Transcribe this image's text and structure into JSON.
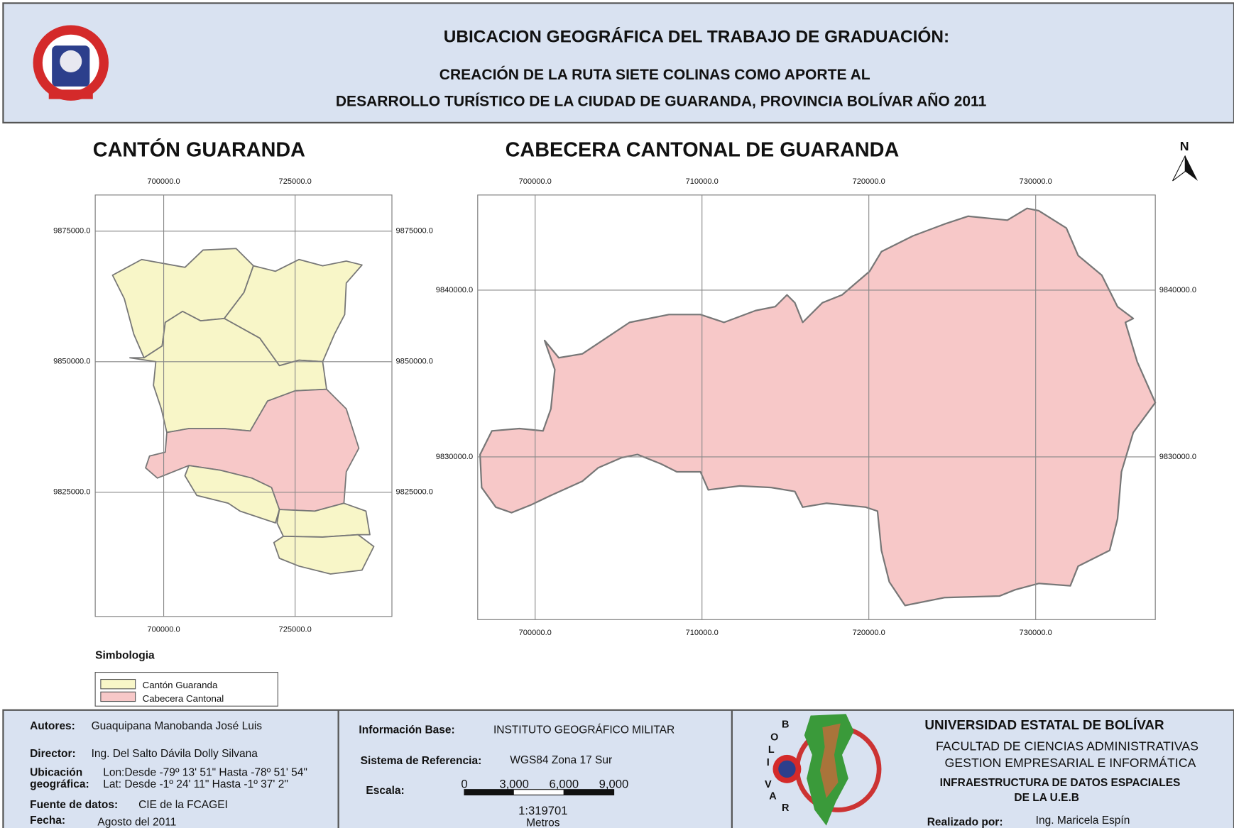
{
  "header": {
    "title": "UBICACION GEOGRÁFICA DEL TRABAJO DE GRADUACIÓN:",
    "subtitle_lines": [
      "CREACIÓN  DE LA RUTA  SIETE COLINAS COMO APORTE AL",
      "DESARROLLO TURÍSTICO DE LA CIUDAD DE GUARANDA, PROVINCIA BOLÍVAR AÑO 2011"
    ]
  },
  "maps": [
    {
      "title": "CANTÓN GUARANDA",
      "x_labels": [
        "700000.0",
        "725000.0"
      ],
      "y_labels": [
        "9875000.0",
        "9850000.0",
        "9825000.0"
      ]
    },
    {
      "title": "CABECERA CANTONAL DE GUARANDA",
      "x_labels": [
        "700000.0",
        "710000.0",
        "720000.0",
        "730000.0"
      ],
      "y_labels": [
        "9840000.0",
        "9830000.0"
      ]
    }
  ],
  "north": "N",
  "legend": {
    "title": "Simbologia",
    "items": [
      "Cantón Guaranda",
      "Cabecera Cantonal"
    ]
  },
  "footer": {
    "authors": {
      "label": "Autores:",
      "value": "Guaquipana Manobanda José Luis"
    },
    "director": {
      "label": "Director:",
      "value": "Ing. Del Salto Dávila Dolly Silvana"
    },
    "location": {
      "label_lines": [
        "Ubicación",
        "geográfica:"
      ],
      "value_lines": [
        "Lon:Desde -79º 13' 51\" Hasta -78º 51' 54\"",
        "Lat: Desde  -1º 24' 11\" Hasta -1º 37' 2\""
      ]
    },
    "source": {
      "label": "Fuente de datos:",
      "value": "CIE de la FCAGEI"
    },
    "date": {
      "label": "Fecha:",
      "value": "Agosto del 2011"
    },
    "base_info": {
      "label": "Información Base:",
      "value": "INSTITUTO GEOGRÁFICO MILITAR"
    },
    "reference": {
      "label": "Sistema de  Referencia:",
      "value": "WGS84 Zona 17 Sur"
    },
    "scale": {
      "label": "Escala:",
      "bar_labels": [
        "0",
        "3,000",
        "6,000",
        "9,000"
      ],
      "ratio": "1:319701",
      "unit": "Metros"
    },
    "logo_letters": [
      "B",
      "O",
      "L",
      "I",
      "V",
      "A",
      "R"
    ],
    "institution": [
      "UNIVERSIDAD ESTATAL DE BOLÍVAR",
      "FACULTAD DE CIENCIAS ADMINISTRATIVAS",
      "GESTION EMPRESARIAL E INFORMÁTICA",
      "INFRAESTRUCTURA DE DATOS ESPACIALES",
      "DE LA U.E.B"
    ],
    "made_by": {
      "label": "Realizado por:",
      "value": "Ing. Maricela Espín"
    }
  }
}
